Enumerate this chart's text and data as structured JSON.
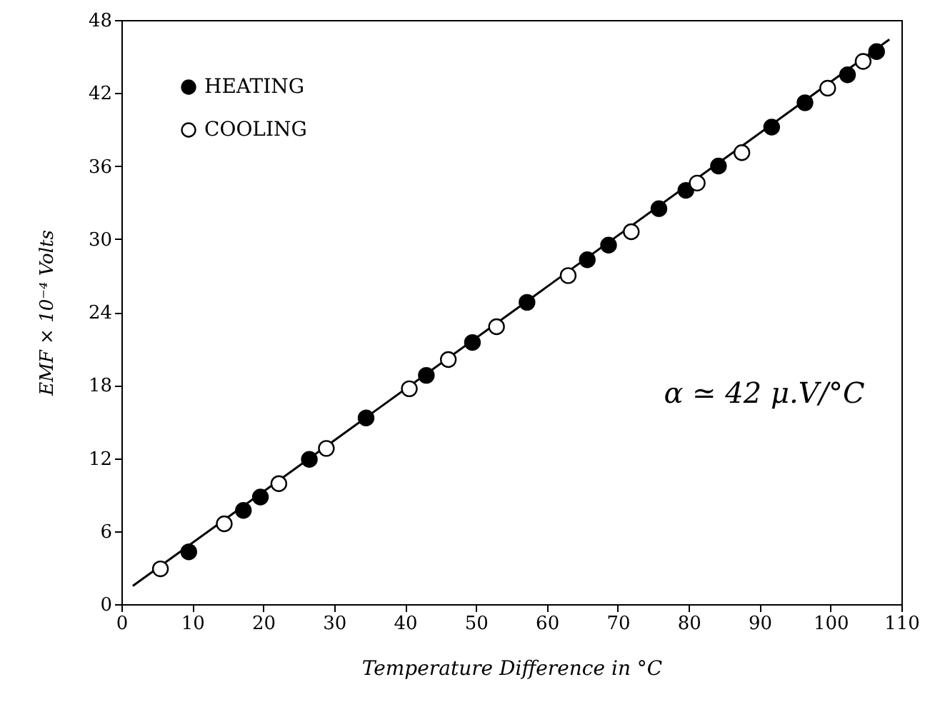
{
  "chart_data": {
    "type": "scatter",
    "xlabel": "Temperature Difference in °C",
    "ylabel": "EMF × 10⁻⁴ Volts",
    "xlim": [
      0,
      110
    ],
    "xticks": [
      0,
      10,
      20,
      30,
      40,
      50,
      60,
      70,
      80,
      90,
      100,
      110
    ],
    "ylim": [
      0,
      48
    ],
    "yticks": [
      0,
      6,
      12,
      18,
      24,
      30,
      36,
      42,
      48
    ],
    "marker": "circle",
    "legend": "top left",
    "annotations": [
      "α ≃ 42 μ.V/°C"
    ],
    "series": [
      {
        "name": "HEATING",
        "color": "#000000",
        "x": [
          9.5,
          17.2,
          19.6,
          26.5,
          34.5,
          43,
          49.5,
          57.2,
          65.7,
          68.7,
          75.8,
          79.6,
          84.2,
          91.7,
          96.4,
          102.4,
          106.5
        ],
        "values": [
          4.3,
          7.7,
          8.8,
          11.9,
          15.3,
          18.8,
          21.5,
          24.8,
          28.3,
          29.5,
          32.5,
          34,
          36,
          39.2,
          41.2,
          43.5,
          45.4
        ]
      },
      {
        "name": "COOLING",
        "color": "#ffffff",
        "x": [
          5.5,
          14.5,
          22.2,
          28.9,
          40.6,
          46.1,
          52.9,
          63,
          71.9,
          81.2,
          87.5,
          99.6,
          104.6
        ],
        "values": [
          2.9,
          6.6,
          9.9,
          12.8,
          17.7,
          20.1,
          22.8,
          27,
          30.6,
          34.6,
          37.1,
          42.4,
          44.6
        ]
      },
      {
        "type": "line",
        "color": "#000000",
        "marker": "none",
        "x": [
          1.6,
          108.3
        ],
        "values": [
          1.5,
          46.4
        ]
      }
    ]
  }
}
